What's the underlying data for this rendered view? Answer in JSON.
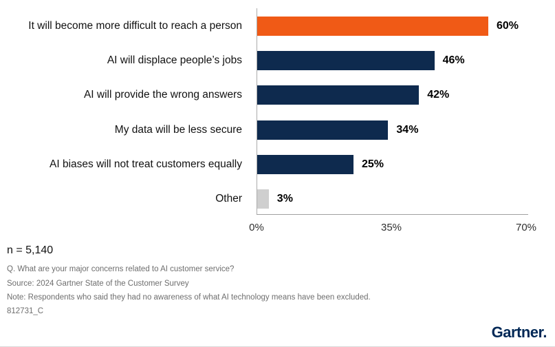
{
  "chart_data": {
    "type": "bar",
    "orientation": "horizontal",
    "title": "",
    "xlabel": "",
    "ylabel": "",
    "categories": [
      "It will become more difficult to reach a person",
      "AI will displace people’s jobs",
      "AI will provide the wrong answers",
      "My data will be less secure",
      "AI biases will not treat customers equally",
      "Other"
    ],
    "values": [
      60,
      46,
      42,
      34,
      25,
      3
    ],
    "value_labels": [
      "60%",
      "46%",
      "42%",
      "34%",
      "25%",
      "3%"
    ],
    "bar_colors": [
      "#F05A16",
      "#0E2A4E",
      "#0E2A4E",
      "#0E2A4E",
      "#0E2A4E",
      "#CFCFCF"
    ],
    "xlim": [
      0,
      70
    ],
    "x_ticks": [
      {
        "value": 0,
        "label": "0%"
      },
      {
        "value": 35,
        "label": "35%"
      },
      {
        "value": 70,
        "label": "70%"
      }
    ],
    "grid": false,
    "legend": null
  },
  "footer": {
    "sample_size": "n = 5,140",
    "question": "Q. What are your major concerns related to AI customer service?",
    "source": "Source: 2024 Gartner State of the Customer Survey",
    "note": "Note: Respondents who said they had no awareness of what AI technology means have been excluded.",
    "code": "812731_C"
  },
  "branding": {
    "logo_text": "Gartner.",
    "logo_color": "#002856"
  }
}
